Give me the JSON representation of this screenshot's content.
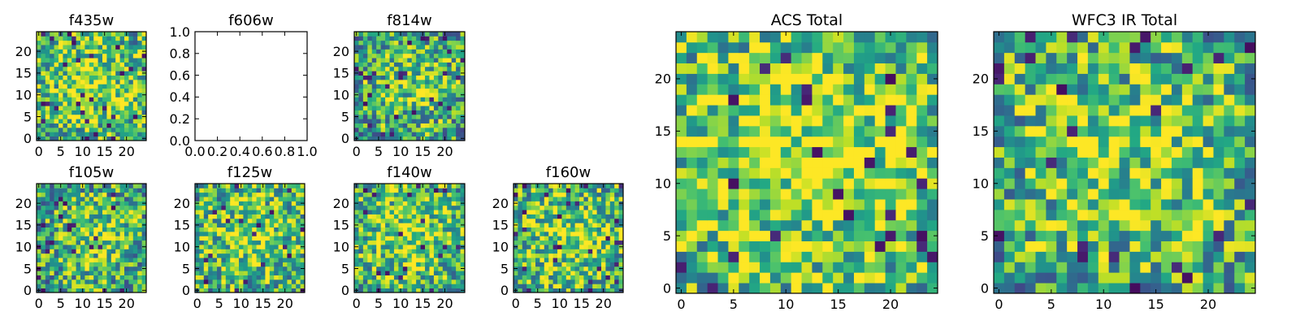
{
  "chart_data": [
    {
      "type": "heatmap",
      "title": "f435w",
      "grid": false,
      "colormap": "viridis",
      "size": [
        25,
        25
      ],
      "xlim": [
        -0.5,
        24.5
      ],
      "ylim": [
        -0.5,
        24.5
      ],
      "x_ticks": [
        0,
        5,
        10,
        15,
        20
      ],
      "y_ticks": [
        0,
        5,
        10,
        15,
        20
      ],
      "brightness": 0.62,
      "seed": 11
    },
    {
      "type": "empty",
      "title": "f606w",
      "grid": false,
      "xlim": [
        0.0,
        1.0
      ],
      "ylim": [
        0.0,
        1.0
      ],
      "x_ticks": [
        "0.0",
        "0.2",
        "0.4",
        "0.6",
        "0.8",
        "1.0"
      ],
      "y_ticks": [
        "0.0",
        "0.2",
        "0.4",
        "0.6",
        "0.8",
        "1.0"
      ]
    },
    {
      "type": "heatmap",
      "title": "f814w",
      "grid": false,
      "colormap": "viridis",
      "size": [
        25,
        25
      ],
      "xlim": [
        -0.5,
        24.5
      ],
      "ylim": [
        -0.5,
        24.5
      ],
      "x_ticks": [
        0,
        5,
        10,
        15,
        20
      ],
      "y_ticks": [
        0,
        5,
        10,
        15,
        20
      ],
      "brightness": 0.55,
      "seed": 23
    },
    {
      "type": "heatmap",
      "title": "f105w",
      "grid": false,
      "colormap": "viridis",
      "size": [
        25,
        25
      ],
      "xlim": [
        -0.5,
        24.5
      ],
      "ylim": [
        -0.5,
        24.5
      ],
      "x_ticks": [
        0,
        5,
        10,
        15,
        20
      ],
      "y_ticks": [
        0,
        5,
        10,
        15,
        20
      ],
      "brightness": 0.55,
      "seed": 37
    },
    {
      "type": "heatmap",
      "title": "f125w",
      "grid": false,
      "colormap": "viridis",
      "size": [
        25,
        25
      ],
      "xlim": [
        -0.5,
        24.5
      ],
      "ylim": [
        -0.5,
        24.5
      ],
      "x_ticks": [
        0,
        5,
        10,
        15,
        20
      ],
      "y_ticks": [
        0,
        5,
        10,
        15,
        20
      ],
      "brightness": 0.6,
      "seed": 41
    },
    {
      "type": "heatmap",
      "title": "f140w",
      "grid": false,
      "colormap": "viridis",
      "size": [
        25,
        25
      ],
      "xlim": [
        -0.5,
        24.5
      ],
      "ylim": [
        -0.5,
        24.5
      ],
      "x_ticks": [
        0,
        5,
        10,
        15,
        20
      ],
      "y_ticks": [
        0,
        5,
        10,
        15,
        20
      ],
      "brightness": 0.62,
      "seed": 53
    },
    {
      "type": "heatmap",
      "title": "f160w",
      "grid": false,
      "colormap": "viridis",
      "size": [
        25,
        25
      ],
      "xlim": [
        -0.5,
        24.5
      ],
      "ylim": [
        -0.5,
        24.5
      ],
      "x_ticks": [
        0,
        5,
        10,
        15,
        20
      ],
      "y_ticks": [
        0,
        5,
        10,
        15,
        20
      ],
      "brightness": 0.62,
      "seed": 67
    },
    {
      "type": "heatmap",
      "title": "ACS Total",
      "grid": false,
      "colormap": "viridis",
      "size": [
        25,
        25
      ],
      "xlim": [
        -0.5,
        24.5
      ],
      "ylim": [
        -0.5,
        24.5
      ],
      "x_ticks": [
        0,
        5,
        10,
        15,
        20
      ],
      "y_ticks": [
        0,
        5,
        10,
        15,
        20
      ],
      "brightness": 0.68,
      "seed": 79
    },
    {
      "type": "heatmap",
      "title": "WFC3 IR Total",
      "grid": false,
      "colormap": "viridis",
      "size": [
        25,
        25
      ],
      "xlim": [
        -0.5,
        24.5
      ],
      "ylim": [
        -0.5,
        24.5
      ],
      "x_ticks": [
        0,
        5,
        10,
        15,
        20
      ],
      "y_ticks": [
        0,
        5,
        10,
        15,
        20
      ],
      "brightness": 0.58,
      "seed": 97
    }
  ]
}
